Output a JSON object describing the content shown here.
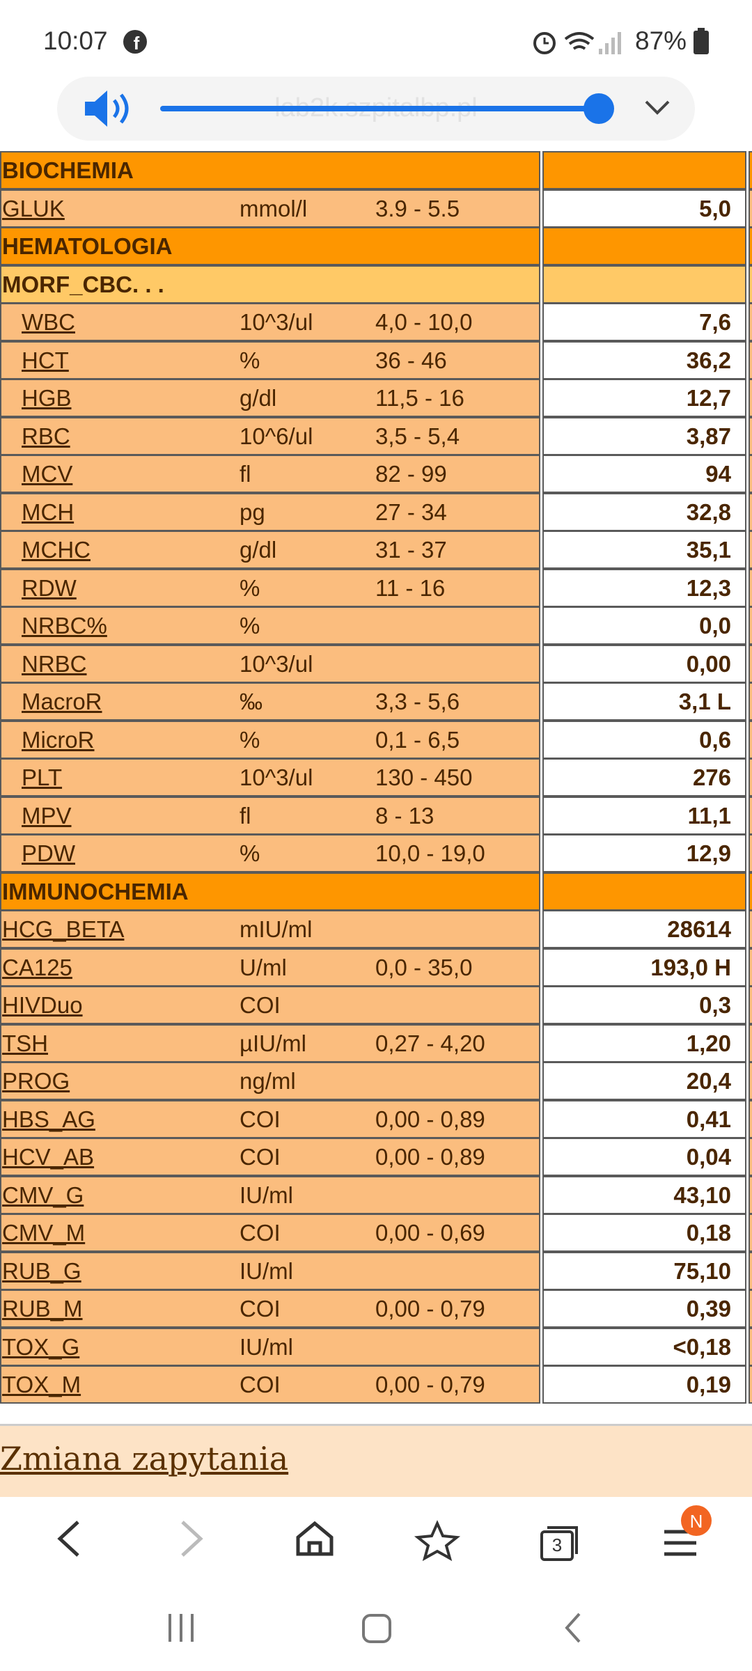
{
  "status_bar": {
    "time": "10:07",
    "battery": "87%"
  },
  "address_bar": {
    "url": "lab2k.szpitalbp.pl"
  },
  "table": {
    "sections": [
      {
        "title": "BIOCHEMIA",
        "rows": [
          {
            "name": "GLUK",
            "unit": "mmol/l",
            "range": "3.9 - 5.5",
            "result": "5,0"
          }
        ]
      },
      {
        "title": "HEMATOLOGIA",
        "groups": [
          {
            "title": "MORF_CBC. . .",
            "rows": [
              {
                "name": "WBC",
                "unit": "10^3/ul",
                "range": "4,0 - 10,0",
                "result": "7,6"
              },
              {
                "name": "HCT",
                "unit": "%",
                "range": "36 - 46",
                "result": "36,2"
              },
              {
                "name": "HGB",
                "unit": "g/dl",
                "range": "11,5 - 16",
                "result": "12,7"
              },
              {
                "name": "RBC",
                "unit": "10^6/ul",
                "range": "3,5 - 5,4",
                "result": "3,87"
              },
              {
                "name": "MCV",
                "unit": "fl",
                "range": "82 - 99",
                "result": "94"
              },
              {
                "name": "MCH",
                "unit": "pg",
                "range": "27 - 34",
                "result": "32,8"
              },
              {
                "name": "MCHC",
                "unit": "g/dl",
                "range": "31 - 37",
                "result": "35,1"
              },
              {
                "name": "RDW",
                "unit": "%",
                "range": "11 - 16",
                "result": "12,3"
              },
              {
                "name": "NRBC%",
                "unit": "%",
                "result": "0,0"
              },
              {
                "name": "NRBC",
                "unit": "10^3/ul",
                "result": "0,00"
              },
              {
                "name": "MacroR",
                "unit": "‰",
                "range": "3,3 - 5,6",
                "result": "3,1 L"
              },
              {
                "name": "MicroR",
                "unit": "%",
                "range": "0,1 - 6,5",
                "result": "0,6"
              },
              {
                "name": "PLT",
                "unit": "10^3/ul",
                "range": "130 - 450",
                "result": "276"
              },
              {
                "name": "MPV",
                "unit": "fl",
                "range": "8 - 13",
                "result": "11,1"
              },
              {
                "name": "PDW",
                "unit": "%",
                "range": "10,0 - 19,0",
                "result": "12,9"
              }
            ]
          }
        ]
      },
      {
        "title": "IMMUNOCHEMIA",
        "rows": [
          {
            "name": "HCG_BETA",
            "unit": "mIU/ml",
            "result": "28614"
          },
          {
            "name": "CA125",
            "unit": "U/ml",
            "range": "0,0 - 35,0",
            "result": "193,0 H"
          },
          {
            "name": "HIVDuo",
            "unit": "COI",
            "result": "0,3"
          },
          {
            "name": "TSH",
            "unit": "µIU/ml",
            "range": "0,27 - 4,20",
            "result": "1,20"
          },
          {
            "name": "PROG",
            "unit": "ng/ml",
            "result": "20,4"
          },
          {
            "name": "HBS_AG",
            "unit": "COI",
            "range": "0,00 - 0,89",
            "result": "0,41"
          },
          {
            "name": "HCV_AB",
            "unit": "COI",
            "range": "0,00 - 0,89",
            "result": "0,04"
          },
          {
            "name": "CMV_G",
            "unit": "IU/ml",
            "result": "43,10"
          },
          {
            "name": "CMV_M",
            "unit": "COI",
            "range": "0,00 - 0,69",
            "result": "0,18"
          },
          {
            "name": "RUB_G",
            "unit": "IU/ml",
            "result": "75,10"
          },
          {
            "name": "RUB_M",
            "unit": "COI",
            "range": "0,00 - 0,79",
            "result": "0,39"
          },
          {
            "name": "TOX_G",
            "unit": "IU/ml",
            "result": "<0,18"
          },
          {
            "name": "TOX_M",
            "unit": "COI",
            "range": "0,00 - 0,79",
            "result": "0,19"
          }
        ]
      }
    ]
  },
  "link": {
    "text": "Zmiana zapytania"
  },
  "bottom_nav": {
    "tab_count": "3",
    "badge": "N"
  }
}
